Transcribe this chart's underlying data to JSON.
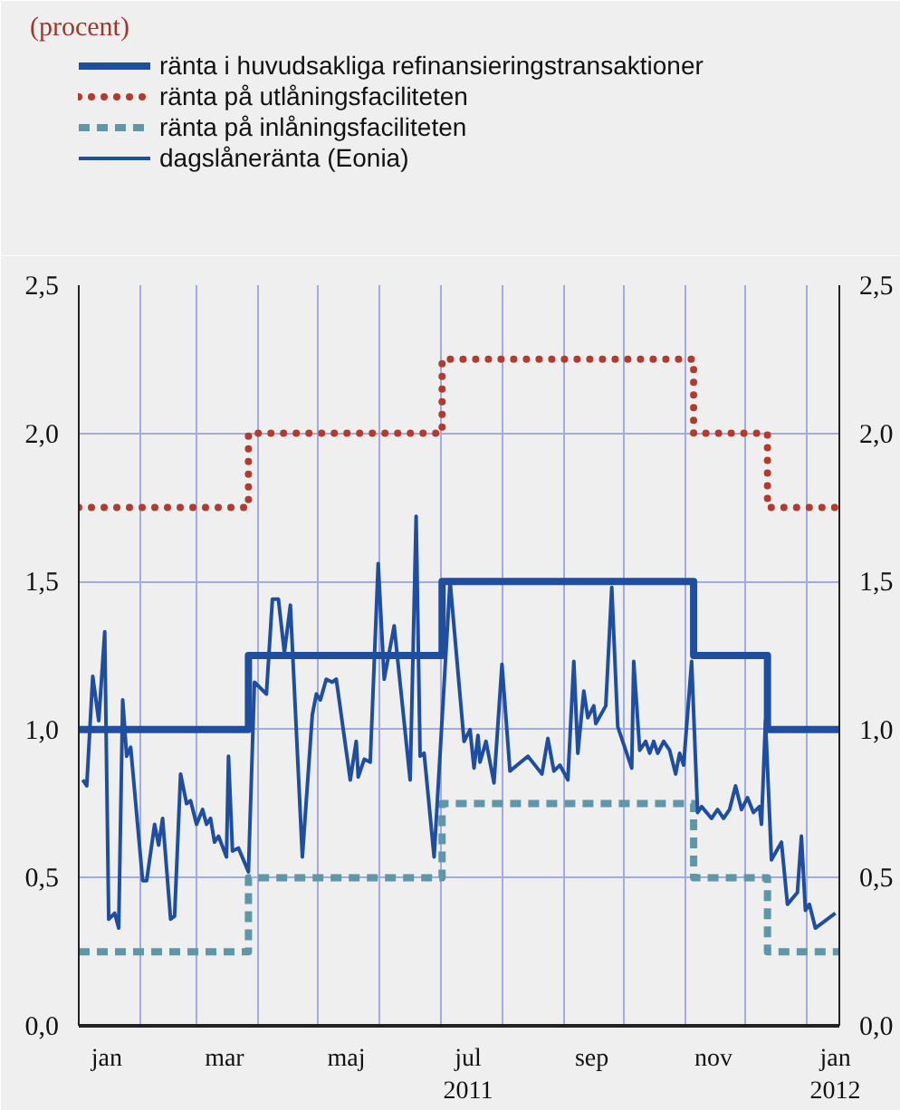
{
  "chart_data": {
    "type": "line",
    "title": "(procent)",
    "xlim": [
      "2011-01-01",
      "2012-01-17"
    ],
    "xticks": [
      {
        "value": "2011-01-01",
        "label": null
      },
      {
        "value": "2011-02-01",
        "label": null
      },
      {
        "value": "2011-03-01",
        "label": null
      },
      {
        "value": "2011-04-01",
        "label": null
      },
      {
        "value": "2011-05-01",
        "label": null
      },
      {
        "value": "2011-06-01",
        "label": null
      },
      {
        "value": "2011-07-01",
        "label": null
      },
      {
        "value": "2011-08-01",
        "label": null
      },
      {
        "value": "2011-09-01",
        "label": null
      },
      {
        "value": "2011-10-01",
        "label": null
      },
      {
        "value": "2011-11-01",
        "label": null
      },
      {
        "value": "2011-12-01",
        "label": null
      },
      {
        "value": "2012-01-01",
        "label": null
      },
      {
        "value": "2011-01-15",
        "label": "jan"
      },
      {
        "value": "2011-03-15",
        "label": "mar"
      },
      {
        "value": "2011-05-15",
        "label": "maj"
      },
      {
        "value": "2011-07-15",
        "label": "jul\n2011"
      },
      {
        "value": "2011-09-15",
        "label": "sep"
      },
      {
        "value": "2011-11-15",
        "label": "nov"
      },
      {
        "value": "2012-01-15",
        "label": "jan\n2012"
      }
    ],
    "ylim": [
      0,
      2.5
    ],
    "yticks": [
      {
        "value": 0,
        "label": "0,0"
      },
      {
        "value": 0.5,
        "label": "0,5"
      },
      {
        "value": 1,
        "label": "1,0"
      },
      {
        "value": 1.5,
        "label": "1,5"
      },
      {
        "value": 2,
        "label": "2,0"
      },
      {
        "value": 2.5,
        "label": "2,5"
      }
    ],
    "y2lim": [
      0,
      2.5
    ],
    "y2ticks": [
      {
        "value": 0,
        "label": "0,0"
      },
      {
        "value": 0.5,
        "label": "0,5"
      },
      {
        "value": 1,
        "label": "1,0"
      },
      {
        "value": 1.5,
        "label": "1,5"
      },
      {
        "value": 2,
        "label": "2,0"
      },
      {
        "value": 2.5,
        "label": "2,5"
      }
    ],
    "grid": true,
    "legend": "top",
    "series": [
      {
        "name": "ränta i huvudsakliga refinansieringstransaktioner",
        "type": "step",
        "color": "#1f4e9e",
        "line_style": "solid",
        "x": [
          "2011-01-01",
          "2011-03-27",
          "2011-07-02",
          "2011-11-05",
          "2011-12-12",
          "2012-01-17"
        ],
        "values": [
          1.0,
          1.25,
          1.5,
          1.25,
          1.0,
          1.0
        ]
      },
      {
        "name": "ränta på utlåningsfaciliteten",
        "type": "step",
        "color": "#b23a2e",
        "line_style": "dotted",
        "x": [
          "2011-01-01",
          "2011-03-27",
          "2011-07-02",
          "2011-11-05",
          "2011-12-12",
          "2012-01-17"
        ],
        "values": [
          1.75,
          2.0,
          2.25,
          2.0,
          1.75,
          1.75
        ]
      },
      {
        "name": "ränta på inlåningsfaciliteten",
        "type": "step",
        "color": "#5f97a8",
        "line_style": "dashed",
        "x": [
          "2011-01-01",
          "2011-03-27",
          "2011-07-02",
          "2011-11-05",
          "2011-12-12",
          "2012-01-17"
        ],
        "values": [
          0.25,
          0.5,
          0.75,
          0.5,
          0.25,
          0.25
        ]
      },
      {
        "name": "dagslåneränta (Eonia)",
        "type": "line",
        "color": "#1f4ea0",
        "line_style": "solid",
        "x": [
          "2011-01-03",
          "2011-01-05",
          "2011-01-08",
          "2011-01-11",
          "2011-01-14",
          "2011-01-16",
          "2011-01-19",
          "2011-01-21",
          "2011-01-23",
          "2011-01-25",
          "2011-01-27",
          "2011-02-02",
          "2011-02-04",
          "2011-02-08",
          "2011-02-10",
          "2011-02-12",
          "2011-02-16",
          "2011-02-18",
          "2011-02-21",
          "2011-02-24",
          "2011-02-26",
          "2011-03-01",
          "2011-03-04",
          "2011-03-06",
          "2011-03-08",
          "2011-03-10",
          "2011-03-12",
          "2011-03-16",
          "2011-03-17",
          "2011-03-19",
          "2011-03-22",
          "2011-03-27",
          "2011-03-30",
          "2011-04-05",
          "2011-04-08",
          "2011-04-11",
          "2011-04-14",
          "2011-04-17",
          "2011-04-23",
          "2011-04-28",
          "2011-04-30",
          "2011-05-02",
          "2011-05-05",
          "2011-05-08",
          "2011-05-10",
          "2011-05-17",
          "2011-05-20",
          "2011-05-21",
          "2011-05-24",
          "2011-05-27",
          "2011-05-31",
          "2011-06-03",
          "2011-06-08",
          "2011-06-16",
          "2011-06-19",
          "2011-06-21",
          "2011-06-23",
          "2011-06-28",
          "2011-07-06",
          "2011-07-13",
          "2011-07-16",
          "2011-07-18",
          "2011-07-20",
          "2011-07-21",
          "2011-07-24",
          "2011-07-28",
          "2011-08-01",
          "2011-08-05",
          "2011-08-14",
          "2011-08-21",
          "2011-08-24",
          "2011-08-27",
          "2011-08-30",
          "2011-09-03",
          "2011-09-06",
          "2011-09-08",
          "2011-09-11",
          "2011-09-13",
          "2011-09-16",
          "2011-09-17",
          "2011-09-22",
          "2011-09-25",
          "2011-09-28",
          "2011-10-05",
          "2011-10-06",
          "2011-10-09",
          "2011-10-12",
          "2011-10-14",
          "2011-10-16",
          "2011-10-18",
          "2011-10-21",
          "2011-10-24",
          "2011-10-27",
          "2011-10-29",
          "2011-10-31",
          "2011-11-04",
          "2011-11-07",
          "2011-11-09",
          "2011-11-14",
          "2011-11-17",
          "2011-11-20",
          "2011-11-23",
          "2011-11-26",
          "2011-11-29",
          "2011-12-02",
          "2011-12-05",
          "2011-12-08",
          "2011-12-09",
          "2011-12-11",
          "2011-12-14",
          "2011-12-19",
          "2011-12-22",
          "2011-12-27",
          "2011-12-29",
          "2011-12-31",
          "2012-01-02",
          "2012-01-05",
          "2012-01-15"
        ],
        "values": [
          0.83,
          0.81,
          1.18,
          1.03,
          1.33,
          0.36,
          0.38,
          0.33,
          1.1,
          0.91,
          0.94,
          0.49,
          0.49,
          0.68,
          0.61,
          0.7,
          0.36,
          0.37,
          0.85,
          0.75,
          0.76,
          0.68,
          0.73,
          0.68,
          0.7,
          0.62,
          0.64,
          0.57,
          0.91,
          0.59,
          0.6,
          0.52,
          1.16,
          1.12,
          1.44,
          1.44,
          1.26,
          1.42,
          0.57,
          1.05,
          1.12,
          1.1,
          1.17,
          1.16,
          1.17,
          0.83,
          0.96,
          0.84,
          0.9,
          0.89,
          1.56,
          1.17,
          1.35,
          0.83,
          1.72,
          0.91,
          0.92,
          0.57,
          1.5,
          0.96,
          1.0,
          0.87,
          0.98,
          0.89,
          0.96,
          0.82,
          1.22,
          0.86,
          0.91,
          0.85,
          0.97,
          0.86,
          0.88,
          0.83,
          1.23,
          0.92,
          1.13,
          1.04,
          1.08,
          1.02,
          1.08,
          1.48,
          1.01,
          0.87,
          1.23,
          0.93,
          0.96,
          0.92,
          0.96,
          0.92,
          0.96,
          0.93,
          0.85,
          0.92,
          0.88,
          1.23,
          0.72,
          0.74,
          0.7,
          0.73,
          0.7,
          0.73,
          0.81,
          0.73,
          0.77,
          0.72,
          0.74,
          0.68,
          1.03,
          0.56,
          0.62,
          0.41,
          0.45,
          0.64,
          0.39,
          0.41,
          0.33,
          0.38
        ]
      }
    ]
  }
}
